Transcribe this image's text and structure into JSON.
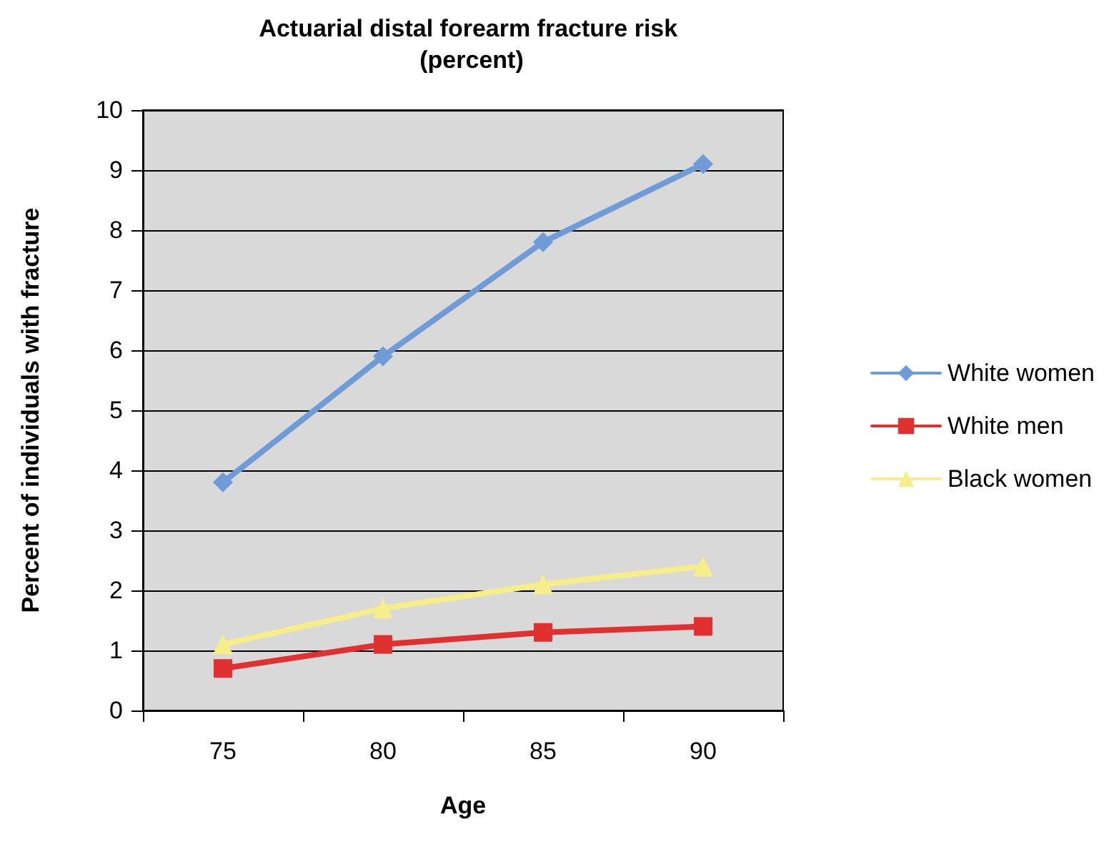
{
  "chart_data": {
    "type": "line",
    "title": "Actuarial distal forearm fracture risk (percent)",
    "xlabel": "Age",
    "ylabel": "Percent of individuals with fracture",
    "categories": [
      "75",
      "80",
      "85",
      "90"
    ],
    "series": [
      {
        "name": "White women",
        "color": "#6f9bd6",
        "marker": "diamond",
        "values": [
          3.8,
          5.9,
          7.8,
          9.1
        ]
      },
      {
        "name": "White men",
        "color": "#e03030",
        "marker": "square",
        "values": [
          0.7,
          1.1,
          1.3,
          1.4
        ]
      },
      {
        "name": "Black women",
        "color": "#f7ee8a",
        "marker": "triangle",
        "values": [
          1.1,
          1.7,
          2.1,
          2.4
        ]
      }
    ],
    "ylim": [
      0,
      10
    ],
    "yticks": [
      0,
      1,
      2,
      3,
      4,
      5,
      6,
      7,
      8,
      9,
      10
    ],
    "grid": "y",
    "legend": "right"
  }
}
